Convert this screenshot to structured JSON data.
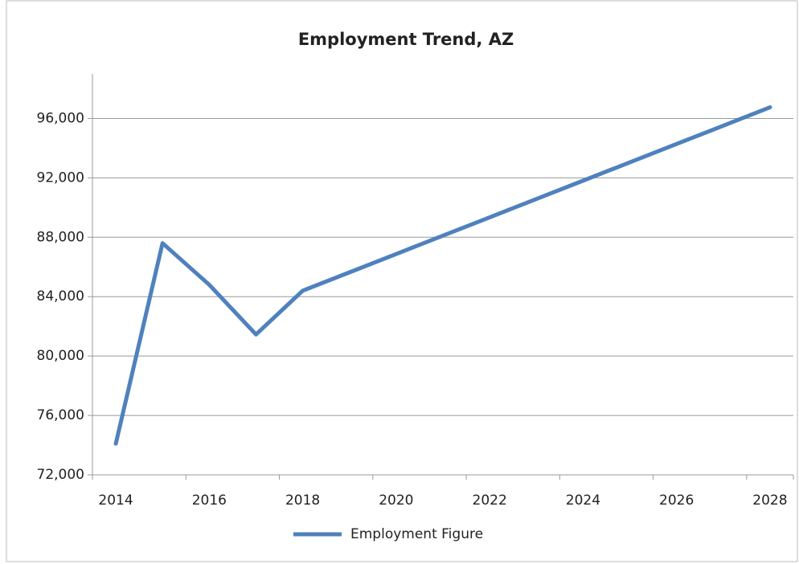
{
  "chart_data": {
    "type": "line",
    "title": "Employment Trend, AZ",
    "categories": [
      "2014",
      null,
      "2016",
      null,
      "2018",
      null,
      "2020",
      null,
      "2022",
      null,
      "2024",
      null,
      "2026",
      null,
      "2028"
    ],
    "series": [
      {
        "name": "Employment Figure",
        "color": "#4f81bd",
        "values": [
          74100,
          87600,
          84800,
          81450,
          84400,
          85635,
          86870,
          88105,
          89340,
          90575,
          91810,
          93045,
          94280,
          95515,
          96750
        ]
      }
    ],
    "ylim": [
      72000,
      99000
    ],
    "yticks": [
      {
        "value": 72000,
        "label": "72,000"
      },
      {
        "value": 76000,
        "label": "76,000"
      },
      {
        "value": 80000,
        "label": "80,000"
      },
      {
        "value": 84000,
        "label": "84,000"
      },
      {
        "value": 88000,
        "label": "88,000"
      },
      {
        "value": 92000,
        "label": "92,000"
      },
      {
        "value": 96000,
        "label": "96,000"
      }
    ],
    "grid": true,
    "legend": "bottom"
  }
}
